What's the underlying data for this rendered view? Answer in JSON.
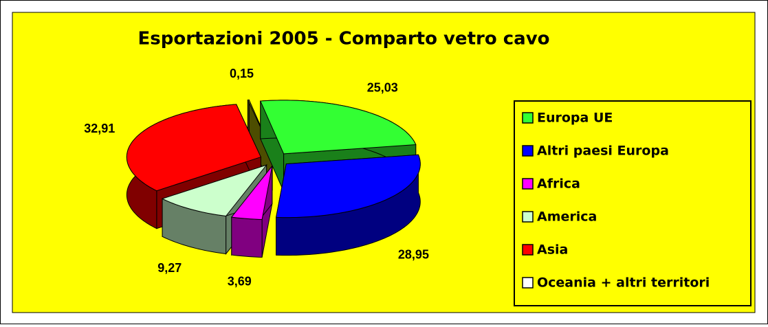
{
  "chart_data": {
    "type": "pie3d",
    "title": "Esportazioni 2005 - Comparto vetro cavo",
    "categories": [
      "Europa UE",
      "Altri paesi Europa",
      "Africa",
      "America",
      "Asia",
      "Oceania + altri territori"
    ],
    "values": [
      25.03,
      28.95,
      3.69,
      9.27,
      32.91,
      0.15
    ],
    "value_labels": [
      "25,03",
      "28,95",
      "3,69",
      "9,27",
      "32,91",
      "0,15"
    ],
    "colors": [
      "#33ff33",
      "#0000ff",
      "#ff00ff",
      "#ccffcc",
      "#ff0000",
      "#999900"
    ],
    "legend_colors": [
      "#33ff33",
      "#0000ff",
      "#ff00ff",
      "#ccffcc",
      "#ff0000",
      "#ffffff"
    ],
    "legend": "right"
  }
}
